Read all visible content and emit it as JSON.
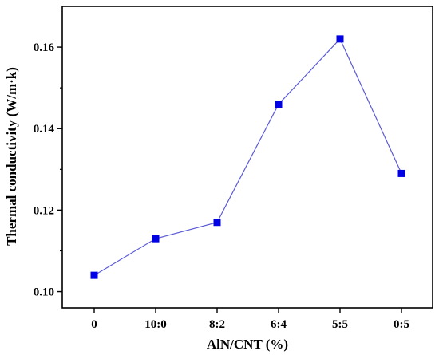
{
  "chart_data": {
    "type": "line",
    "title": "",
    "xlabel": "AlN/CNT (%)",
    "ylabel": "Thermal conductivity (W/m·k)",
    "categories": [
      "0",
      "10:0",
      "8:2",
      "6:4",
      "5:5",
      "0:5"
    ],
    "series": [
      {
        "values": [
          0.104,
          0.113,
          0.117,
          0.146,
          0.162,
          0.129
        ]
      }
    ],
    "ylim": [
      0.096,
      0.17
    ],
    "yticks": [
      "0.10",
      "0.12",
      "0.14",
      "0.16"
    ],
    "grid": false,
    "legend": "none",
    "colors": {
      "line": "#5a5ad8",
      "marker": "#0000e6",
      "axis": "#000000"
    }
  }
}
